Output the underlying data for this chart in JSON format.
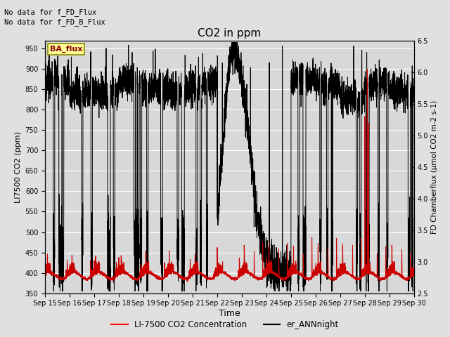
{
  "title": "CO2 in ppm",
  "xlabel": "Time",
  "ylabel_left": "LI7500 CO2 (ppm)",
  "ylabel_right": "FD Chamberflux (μmol CO2 m-2 s-1)",
  "ylim_left": [
    350,
    970
  ],
  "ylim_right": [
    2.5,
    6.5
  ],
  "yticks_left": [
    350,
    400,
    450,
    500,
    550,
    600,
    650,
    700,
    750,
    800,
    850,
    900,
    950
  ],
  "yticks_right": [
    2.5,
    3.0,
    3.5,
    4.0,
    4.5,
    5.0,
    5.5,
    6.0,
    6.5
  ],
  "xtick_labels": [
    "Sep 15",
    "Sep 16",
    "Sep 17",
    "Sep 18",
    "Sep 19",
    "Sep 20",
    "Sep 21",
    "Sep 22",
    "Sep 23",
    "Sep 24",
    "Sep 25",
    "Sep 26",
    "Sep 27",
    "Sep 28",
    "Sep 29",
    "Sep 30"
  ],
  "no_data_text1": "No data for f_FD_Flux",
  "no_data_text2": "No data for f_FD_B_Flux",
  "ba_flux_label": "BA_flux",
  "legend_labels": [
    "LI-7500 CO2 Concentration",
    "er_ANNnight"
  ],
  "legend_colors": [
    "red",
    "black"
  ],
  "line_color_red": "#cc0000",
  "line_color_black": "#000000",
  "bg_color": "#e0e0e0",
  "plot_bg_color": "#d8d8d8",
  "grid_color": "#ffffff",
  "n_days": 15,
  "n_pts": 288
}
